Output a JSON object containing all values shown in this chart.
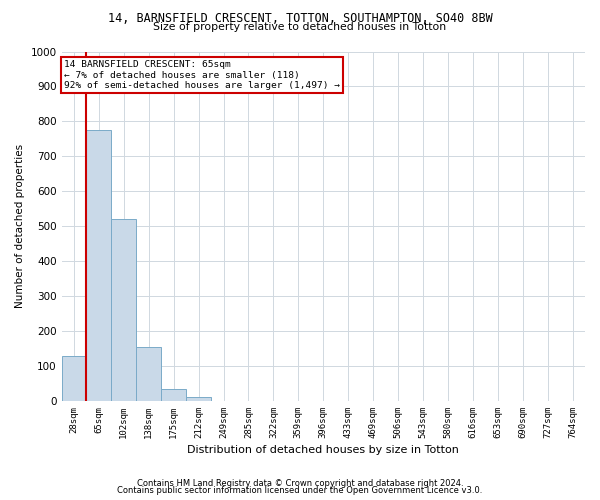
{
  "title_line1": "14, BARNSFIELD CRESCENT, TOTTON, SOUTHAMPTON, SO40 8BW",
  "title_line2": "Size of property relative to detached houses in Totton",
  "xlabel": "Distribution of detached houses by size in Totton",
  "ylabel": "Number of detached properties",
  "bar_labels": [
    "28sqm",
    "65sqm",
    "102sqm",
    "138sqm",
    "175sqm",
    "212sqm",
    "249sqm",
    "285sqm",
    "322sqm",
    "359sqm",
    "396sqm",
    "433sqm",
    "469sqm",
    "506sqm",
    "543sqm",
    "580sqm",
    "616sqm",
    "653sqm",
    "690sqm",
    "727sqm",
    "764sqm"
  ],
  "bar_values": [
    130,
    775,
    520,
    155,
    35,
    10,
    0,
    0,
    0,
    0,
    0,
    0,
    0,
    0,
    0,
    0,
    0,
    0,
    0,
    0,
    0
  ],
  "bar_color": "#c9d9e8",
  "bar_edge_color": "#7aaac8",
  "vline_color": "#cc0000",
  "annotation_text": "14 BARNSFIELD CRESCENT: 65sqm\n← 7% of detached houses are smaller (118)\n92% of semi-detached houses are larger (1,497) →",
  "annotation_box_color": "#cc0000",
  "ylim": [
    0,
    1000
  ],
  "yticks": [
    0,
    100,
    200,
    300,
    400,
    500,
    600,
    700,
    800,
    900,
    1000
  ],
  "footer_line1": "Contains HM Land Registry data © Crown copyright and database right 2024.",
  "footer_line2": "Contains public sector information licensed under the Open Government Licence v3.0.",
  "bg_color": "#ffffff",
  "grid_color": "#d0d8e0"
}
